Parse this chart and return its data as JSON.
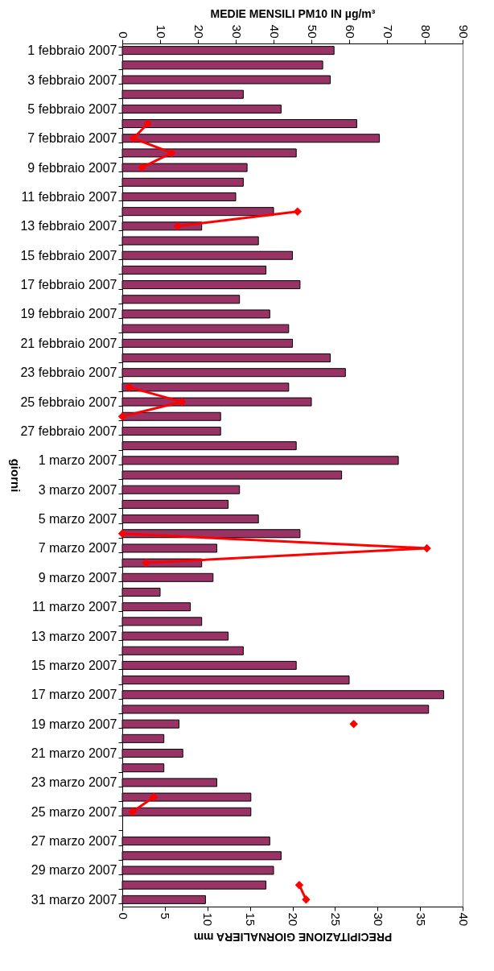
{
  "chart_data": {
    "type": "bar",
    "orientation": "horizontal",
    "xlabel": "PRECIPITAZIONE GIORNALIERA mm",
    "x2label": "MEDIE MENSILI PM10 IN µg/m³",
    "ylabel": "giorni",
    "categories": [
      "1 febbraio 2007",
      null,
      "3 febbraio 2007",
      null,
      "5 febbraio 2007",
      null,
      "7 febbraio 2007",
      null,
      "9 febbraio 2007",
      null,
      "11 febbraio 2007",
      null,
      "13 febbraio 2007",
      null,
      "15 febbraio 2007",
      null,
      "17 febbraio 2007",
      null,
      "19 febbraio 2007",
      null,
      "21 febbraio 2007",
      null,
      "23 febbraio 2007",
      null,
      "25 febbraio 2007",
      null,
      "27 febbraio 2007",
      null,
      "1 marzo 2007",
      null,
      "3 marzo 2007",
      null,
      "5 marzo 2007",
      null,
      "7 marzo 2007",
      null,
      "9 marzo 2007",
      null,
      "11 marzo 2007",
      null,
      "13 marzo 2007",
      null,
      "15 marzo 2007",
      null,
      "17 marzo 2007",
      null,
      "19 marzo 2007",
      null,
      "21 marzo 2007",
      null,
      "23 marzo 2007",
      null,
      "25 marzo 2007",
      null,
      "27 marzo 2007",
      null,
      "29 marzo 2007",
      null,
      "31 marzo 2007"
    ],
    "xlim": [
      0,
      40
    ],
    "xticks": [
      0,
      5,
      10,
      15,
      20,
      25,
      30,
      35,
      40
    ],
    "x2lim": [
      0,
      90
    ],
    "x2ticks": [
      0,
      10,
      20,
      30,
      40,
      50,
      60,
      70,
      80,
      90
    ],
    "marker": "diamond",
    "series": [
      {
        "axis": "x2",
        "color": "#993366",
        "values": [
          56,
          53,
          55,
          32,
          42,
          62,
          68,
          46,
          33,
          32,
          30,
          40,
          21,
          36,
          45,
          38,
          47,
          31,
          39,
          44,
          45,
          55,
          59,
          44,
          50,
          26,
          26,
          46,
          73,
          58,
          31,
          28,
          36,
          47,
          25,
          21,
          24,
          10,
          18,
          21,
          28,
          32,
          46,
          60,
          85,
          81,
          15,
          11,
          16,
          11,
          25,
          34,
          34,
          null,
          39,
          42,
          40,
          38,
          22
        ]
      },
      {
        "type": "line",
        "color": "#ff0000",
        "values": [
          null,
          null,
          null,
          null,
          null,
          3.0,
          1.3,
          5.8,
          2.3,
          null,
          null,
          20.6,
          6.5,
          null,
          null,
          null,
          null,
          null,
          null,
          null,
          null,
          null,
          null,
          0.8,
          7.0,
          0,
          null,
          null,
          null,
          null,
          null,
          null,
          null,
          0,
          35.8,
          2.8,
          null,
          null,
          null,
          null,
          null,
          null,
          null,
          null,
          null,
          null,
          27.2,
          null,
          null,
          null,
          null,
          3.7,
          1.2,
          null,
          null,
          null,
          null,
          20.8,
          21.6
        ]
      }
    ]
  }
}
